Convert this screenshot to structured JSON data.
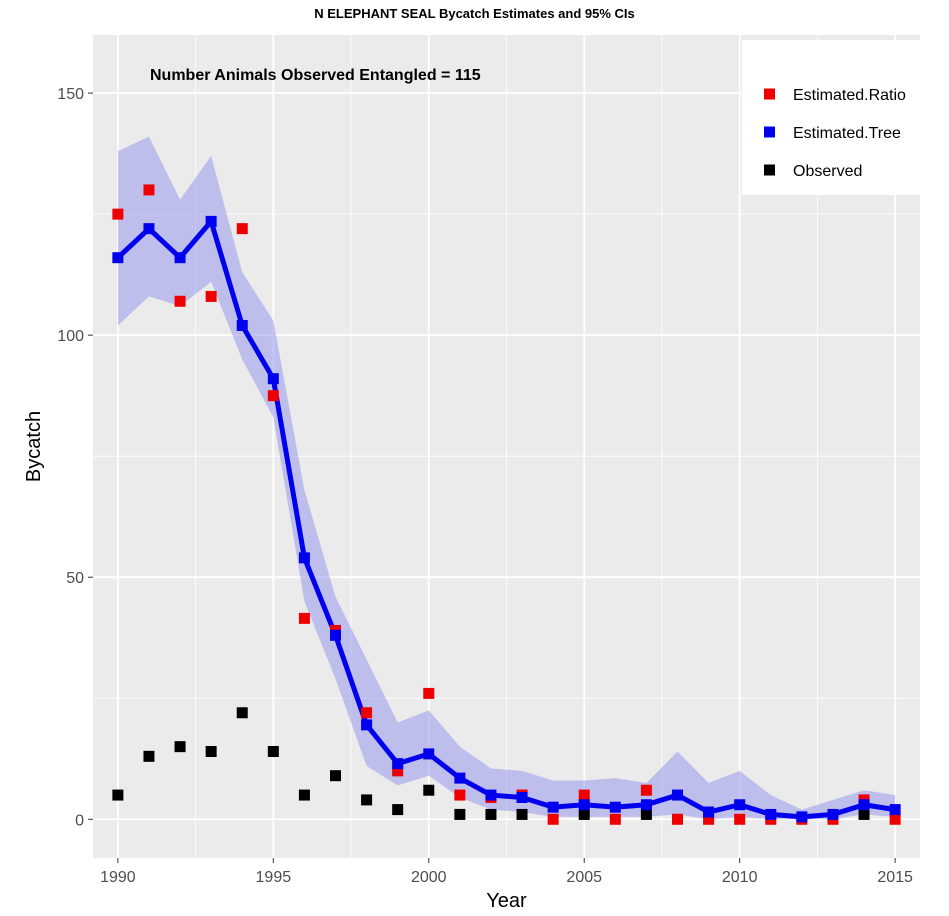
{
  "chart_data": {
    "type": "line",
    "title": "N ELEPHANT SEAL Bycatch Estimates and 95% CIs",
    "xlabel": "Year",
    "ylabel": "Bycatch",
    "annotation": "Number Animals Observed Entangled = 115",
    "xlim": [
      1989.2,
      2015.8
    ],
    "ylim": [
      -8,
      162
    ],
    "x_ticks": [
      1990,
      1995,
      2000,
      2005,
      2010,
      2015
    ],
    "y_ticks": [
      0,
      50,
      100,
      150
    ],
    "grid": true,
    "legend_position": "top-right",
    "legend_entries": [
      "Estimated.Ratio",
      "Estimated.Tree",
      "Observed"
    ],
    "colors": {
      "Estimated.Ratio": "#ee0000",
      "Estimated.Tree": "#0000ee",
      "Observed": "#000000",
      "ci_band": "#9999ee",
      "panel": "#ebebeb",
      "grid": "#ffffff"
    },
    "x": [
      1990,
      1991,
      1992,
      1993,
      1994,
      1995,
      1996,
      1997,
      1998,
      1999,
      2000,
      2001,
      2002,
      2003,
      2004,
      2005,
      2006,
      2007,
      2008,
      2009,
      2010,
      2011,
      2012,
      2013,
      2014,
      2015
    ],
    "series": [
      {
        "name": "Estimated.Tree",
        "values": [
          116,
          122,
          116,
          123.5,
          102,
          91,
          54,
          38,
          19.5,
          11.5,
          13.5,
          8.5,
          5,
          4.5,
          2.5,
          3,
          2.5,
          3,
          5,
          1.5,
          3,
          1,
          0.5,
          1,
          3,
          2
        ],
        "ci_lower": [
          102,
          108,
          106,
          111,
          95,
          83,
          45,
          29,
          11,
          7,
          9,
          4.5,
          2,
          1.5,
          0.5,
          0.5,
          0.5,
          0.5,
          1,
          0,
          0.5,
          0,
          0,
          0,
          1,
          0.5
        ],
        "ci_upper": [
          138,
          141,
          128,
          137,
          113,
          103,
          68,
          46,
          33,
          20,
          22.5,
          15,
          10.5,
          10,
          8,
          8,
          8.5,
          7.5,
          14,
          7.5,
          10,
          5,
          2,
          4,
          6,
          5
        ]
      },
      {
        "name": "Estimated.Ratio",
        "values": [
          125,
          130,
          107,
          108,
          122,
          87.5,
          41.5,
          39,
          22,
          10,
          26,
          5,
          4.5,
          5,
          0,
          5,
          0,
          6,
          0,
          0,
          0,
          0,
          0,
          0,
          4,
          0
        ]
      },
      {
        "name": "Observed",
        "values": [
          5,
          13,
          15,
          14,
          22,
          14,
          5,
          9,
          4,
          2,
          6,
          1,
          1,
          1,
          null,
          1,
          null,
          1,
          null,
          null,
          null,
          null,
          null,
          null,
          1,
          null
        ]
      }
    ]
  }
}
